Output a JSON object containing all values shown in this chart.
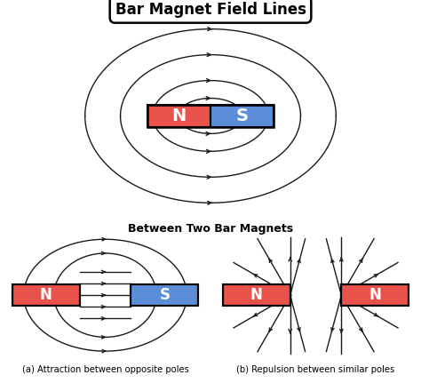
{
  "title": "Bar Magnet Field Lines",
  "subtitle": "Between Two Bar Magnets",
  "label_a": "(a) Attraction between opposite poles",
  "label_b": "(b) Repulsion between similar poles",
  "north_color": "#e8524a",
  "south_color": "#5b8dd9",
  "bg_color": "#ffffff",
  "line_color": "#1a1a1a",
  "magnet_text_color": "#ffffff"
}
